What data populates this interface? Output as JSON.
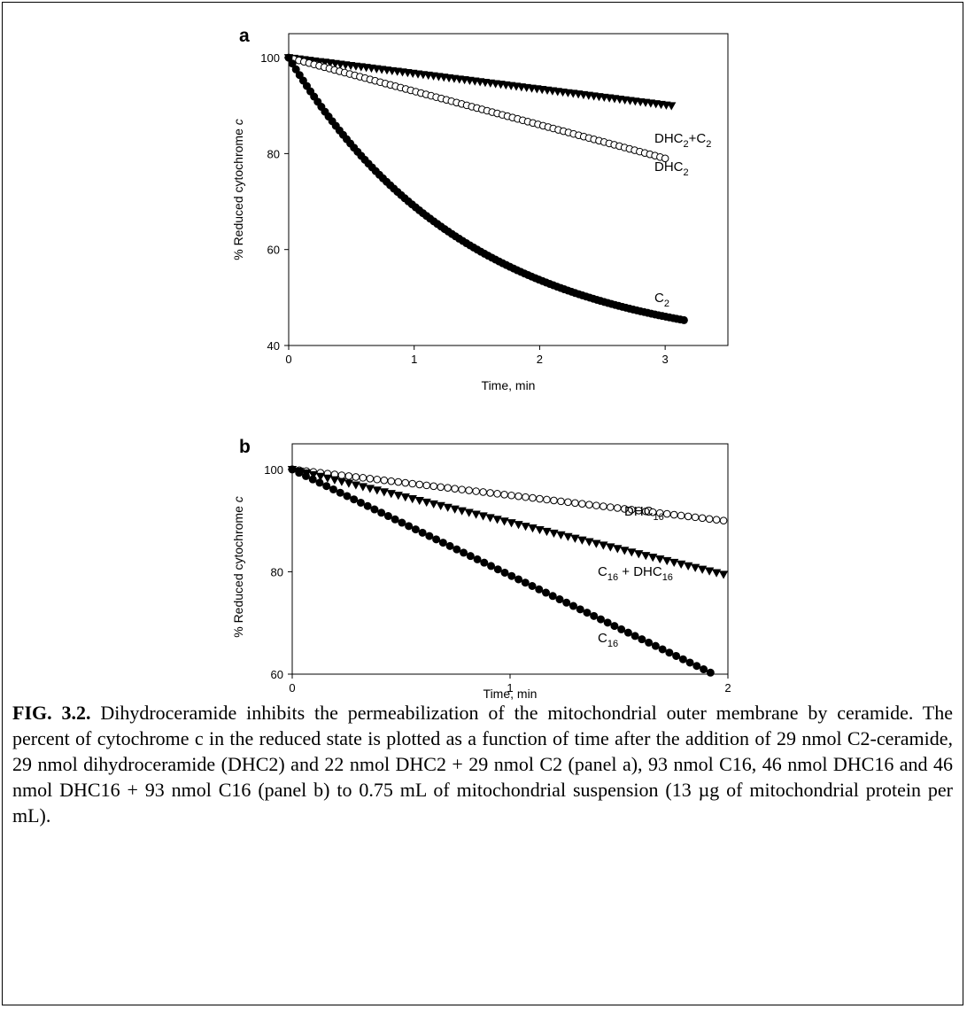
{
  "chart_data": [
    {
      "type": "scatter",
      "panel": "a",
      "xlabel": "Time, min",
      "ylabel": "% Reduced cytochrome c",
      "xlim": [
        0,
        3.5
      ],
      "ylim": [
        40,
        105
      ],
      "xticks": [
        0,
        1,
        2,
        3
      ],
      "yticks": [
        40,
        60,
        80,
        100
      ],
      "grid": false,
      "series": [
        {
          "name": "DHC2",
          "label_main": "DHC",
          "label_sub": "2",
          "marker": "filled-triangle-down",
          "model": {
            "x0": 0,
            "x1": 3.05,
            "n": 75,
            "y0": 100,
            "y1": 90,
            "shape": "linear"
          }
        },
        {
          "name": "DHC2+C2",
          "label_main": "DHC",
          "label_sub": "2",
          "label_main2": "+C",
          "label_sub2": "2",
          "marker": "open-circle",
          "model": {
            "x0": 0,
            "x1": 3.0,
            "n": 75,
            "y0": 100,
            "y1": 79,
            "shape": "linear"
          }
        },
        {
          "name": "C2",
          "label_main": "C",
          "label_sub": "2",
          "marker": "filled-circle",
          "model": {
            "x0": 0,
            "x1": 3.15,
            "n": 110,
            "y0": 100,
            "yinf": 38.5,
            "k": 0.7,
            "shape": "exp"
          }
        }
      ]
    },
    {
      "type": "scatter",
      "panel": "b",
      "xlabel": "Time, min",
      "ylabel": "% Reduced cytochrome c",
      "xlim": [
        0,
        2
      ],
      "ylim": [
        60,
        105
      ],
      "xticks": [
        0,
        1,
        2
      ],
      "yticks": [
        60,
        80,
        100
      ],
      "grid": false,
      "series": [
        {
          "name": "DHC16",
          "label_main": "DHC",
          "label_sub": "16",
          "marker": "open-circle",
          "model": {
            "x0": 0,
            "x1": 1.98,
            "n": 62,
            "y0": 100,
            "y1": 90,
            "shape": "linear"
          }
        },
        {
          "name": "C16 + DHC16",
          "label_main": "C",
          "label_sub": "16",
          "label_main2": " + DHC",
          "label_sub2": "16",
          "marker": "filled-triangle-down",
          "model": {
            "x0": 0,
            "x1": 1.98,
            "n": 62,
            "y0": 100,
            "y1": 79.5,
            "shape": "linear"
          }
        },
        {
          "name": "C16",
          "label_main": "C",
          "label_sub": "16",
          "marker": "filled-circle",
          "model": {
            "x0": 0,
            "x1": 1.92,
            "n": 62,
            "y0": 100,
            "y1": 60.3,
            "shape": "linear"
          }
        }
      ]
    }
  ],
  "caption": {
    "figure_id": "FIG. 3.2.",
    "text": "Dihydroceramide inhibits the permeabilization of the mitochondrial outer membrane by ceramide. The percent of cytochrome c in the reduced state is plotted as a function of time after the addition of 29 nmol C2-ceramide, 29 nmol dihydroceramide (DHC2) and 22 nmol DHC2 + 29 nmol C2 (panel a), 93 nmol C16, 46 nmol DHC16 and 46 nmol DHC16 + 93 nmol C16 (panel b) to 0.75 mL of mitochondrial suspension (13 µg of mitochondrial protein per mL)."
  }
}
